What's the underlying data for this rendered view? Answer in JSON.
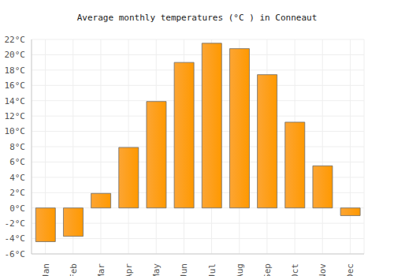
{
  "chart_data": {
    "type": "bar",
    "title": "Average monthly temperatures (°C ) in Conneaut",
    "categories": [
      "Jan",
      "Feb",
      "Mar",
      "Apr",
      "May",
      "Jun",
      "Jul",
      "Aug",
      "Sep",
      "Oct",
      "Nov",
      "Dec"
    ],
    "values": [
      -4.4,
      -3.7,
      1.9,
      7.9,
      13.9,
      19.0,
      21.5,
      20.8,
      17.4,
      11.2,
      5.5,
      -1.0
    ],
    "color": "#fca534",
    "ylim": [
      -6,
      22
    ],
    "yticks": [
      {
        "value": -6,
        "label": "-6°C"
      },
      {
        "value": -4,
        "label": "-4°C"
      },
      {
        "value": -2,
        "label": "-2°C"
      },
      {
        "value": 0,
        "label": "0°C"
      },
      {
        "value": 2,
        "label": "2°C"
      },
      {
        "value": 4,
        "label": "4°C"
      },
      {
        "value": 6,
        "label": "6°C"
      },
      {
        "value": 8,
        "label": "8°C"
      },
      {
        "value": 10,
        "label": "10°C"
      },
      {
        "value": 12,
        "label": "12°C"
      },
      {
        "value": 14,
        "label": "14°C"
      },
      {
        "value": 16,
        "label": "16°C"
      },
      {
        "value": 18,
        "label": "18°C"
      },
      {
        "value": 20,
        "label": "20°C"
      },
      {
        "value": 22,
        "label": "22°C"
      }
    ],
    "grid": true
  }
}
